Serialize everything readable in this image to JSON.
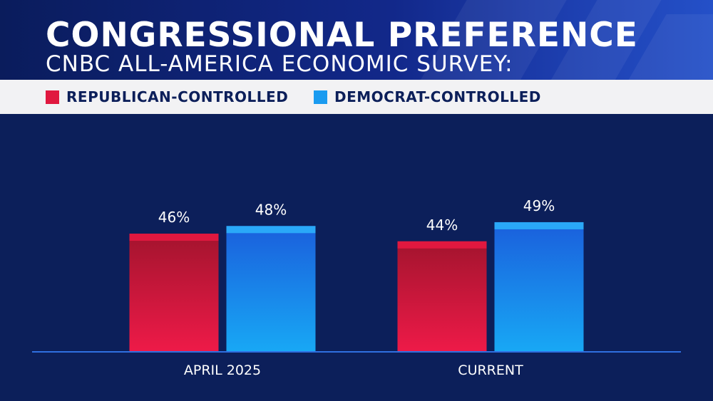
{
  "header": {
    "title": "CONGRESSIONAL PREFERENCE",
    "subtitle": "CNBC ALL-AMERICA ECONOMIC SURVEY:"
  },
  "legend": [
    {
      "label": "REPUBLICAN-CONTROLLED",
      "color": "#e0183f"
    },
    {
      "label": "DEMOCRAT-CONTROLLED",
      "color": "#1a9bf0"
    }
  ],
  "chart_data": {
    "type": "bar",
    "categories": [
      "APRIL 2025",
      "CURRENT"
    ],
    "series": [
      {
        "name": "REPUBLICAN-CONTROLLED",
        "values": [
          46,
          44
        ],
        "labels": [
          "46%",
          "44%"
        ],
        "color": "#e0183f"
      },
      {
        "name": "DEMOCRAT-CONTROLLED",
        "values": [
          48,
          49
        ],
        "labels": [
          "48%",
          "49%"
        ],
        "color": "#1a9bf0"
      }
    ],
    "title": "CONGRESSIONAL PREFERENCE",
    "subtitle": "CNBC ALL-AMERICA ECONOMIC SURVEY:",
    "xlabel": "",
    "ylabel": "",
    "grid": false,
    "legend_position": "top-left"
  }
}
